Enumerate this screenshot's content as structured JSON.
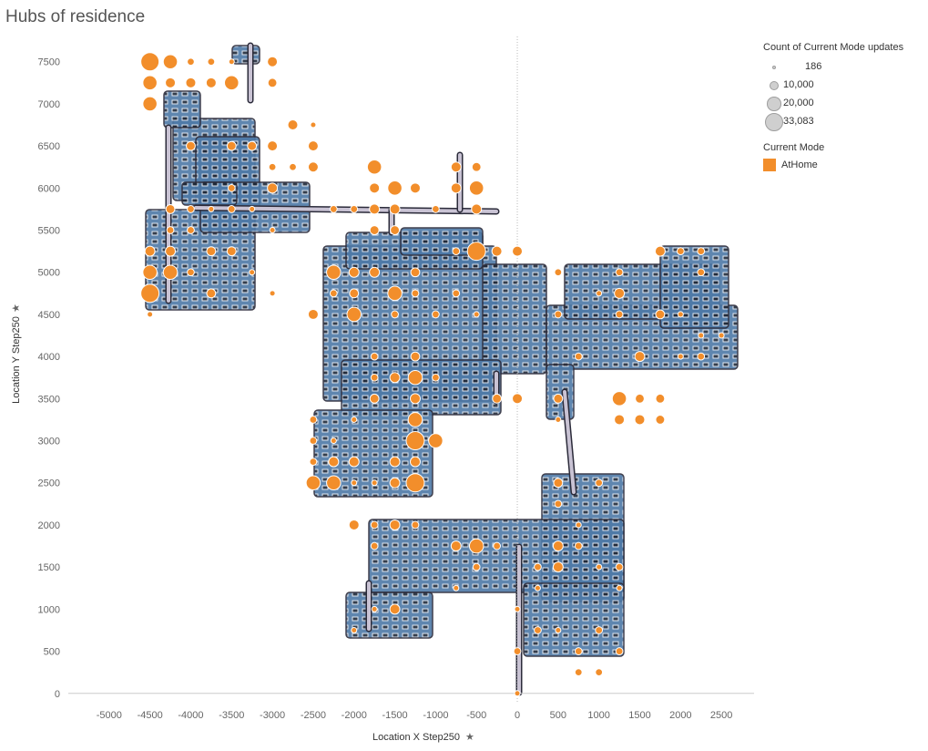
{
  "title": "Hubs of residence",
  "colors": {
    "marker": "#f28e2b",
    "network": "#4e79a7",
    "road": "#c9c3d4",
    "road_outline": "#2b2b3a"
  },
  "legend": {
    "size_title": "Count of Current Mode updates",
    "size_items": [
      {
        "label": "186",
        "value": 186
      },
      {
        "label": "10,000",
        "value": 10000
      },
      {
        "label": "20,000",
        "value": 20000
      },
      {
        "label": "33,083",
        "value": 33083
      }
    ],
    "color_title": "Current Mode",
    "color_items": [
      {
        "label": "AtHome"
      }
    ]
  },
  "chart_data": {
    "type": "scatter",
    "title": "Hubs of residence",
    "xlabel": "Location X Step250",
    "ylabel": "Location Y Step250",
    "xlim": [
      -5500,
      2900
    ],
    "ylim": [
      -100,
      7800
    ],
    "x_ticks": [
      -5000,
      -4500,
      -4000,
      -3500,
      -3000,
      -2500,
      -2000,
      -1500,
      -1000,
      -500,
      0,
      500,
      1000,
      1500,
      2000,
      2500
    ],
    "y_ticks": [
      0,
      500,
      1000,
      1500,
      2000,
      2500,
      3000,
      3500,
      4000,
      4500,
      5000,
      5500,
      6000,
      6500,
      7000,
      7500
    ],
    "series": [
      {
        "name": "AtHome",
        "points": [
          {
            "x": -4500,
            "y": 7500,
            "count": 33083
          },
          {
            "x": -4250,
            "y": 7500,
            "count": 20000
          },
          {
            "x": -4500,
            "y": 7250,
            "count": 20000
          },
          {
            "x": -4250,
            "y": 7250,
            "count": 10000
          },
          {
            "x": -4500,
            "y": 7000,
            "count": 20000
          },
          {
            "x": -4000,
            "y": 7250,
            "count": 10000
          },
          {
            "x": -3750,
            "y": 7250,
            "count": 10000
          },
          {
            "x": -3500,
            "y": 7250,
            "count": 20000
          },
          {
            "x": -3000,
            "y": 7250,
            "count": 8000
          },
          {
            "x": -3000,
            "y": 7500,
            "count": 10000
          },
          {
            "x": -4000,
            "y": 7500,
            "count": 5000
          },
          {
            "x": -3750,
            "y": 7500,
            "count": 5000
          },
          {
            "x": -3500,
            "y": 7500,
            "count": 3000
          },
          {
            "x": -4000,
            "y": 6500,
            "count": 8000
          },
          {
            "x": -3500,
            "y": 6500,
            "count": 8000
          },
          {
            "x": -3250,
            "y": 6500,
            "count": 8000
          },
          {
            "x": -3000,
            "y": 6500,
            "count": 10000
          },
          {
            "x": -2750,
            "y": 6750,
            "count": 10000
          },
          {
            "x": -2500,
            "y": 6500,
            "count": 10000
          },
          {
            "x": -2500,
            "y": 6250,
            "count": 10000
          },
          {
            "x": -2750,
            "y": 6250,
            "count": 5000
          },
          {
            "x": -3000,
            "y": 6250,
            "count": 5000
          },
          {
            "x": -2500,
            "y": 6750,
            "count": 3000
          },
          {
            "x": -3000,
            "y": 6000,
            "count": 10000
          },
          {
            "x": -3500,
            "y": 6000,
            "count": 5000
          },
          {
            "x": -4250,
            "y": 5750,
            "count": 8000
          },
          {
            "x": -4000,
            "y": 5750,
            "count": 5000
          },
          {
            "x": -3750,
            "y": 5750,
            "count": 3000
          },
          {
            "x": -3500,
            "y": 5750,
            "count": 5000
          },
          {
            "x": -3250,
            "y": 5750,
            "count": 3000
          },
          {
            "x": -4250,
            "y": 5500,
            "count": 5000
          },
          {
            "x": -4000,
            "y": 5500,
            "count": 5000
          },
          {
            "x": -3000,
            "y": 5500,
            "count": 3000
          },
          {
            "x": -4500,
            "y": 5250,
            "count": 10000
          },
          {
            "x": -4250,
            "y": 5250,
            "count": 10000
          },
          {
            "x": -3750,
            "y": 5250,
            "count": 8000
          },
          {
            "x": -3500,
            "y": 5250,
            "count": 8000
          },
          {
            "x": -4500,
            "y": 5000,
            "count": 20000
          },
          {
            "x": -4250,
            "y": 5000,
            "count": 20000
          },
          {
            "x": -4000,
            "y": 5000,
            "count": 5000
          },
          {
            "x": -3250,
            "y": 5000,
            "count": 3000
          },
          {
            "x": -4500,
            "y": 4750,
            "count": 33083
          },
          {
            "x": -3750,
            "y": 4750,
            "count": 8000
          },
          {
            "x": -3000,
            "y": 4750,
            "count": 3000
          },
          {
            "x": -4500,
            "y": 4500,
            "count": 3000
          },
          {
            "x": -1750,
            "y": 6250,
            "count": 20000
          },
          {
            "x": -1750,
            "y": 6000,
            "count": 10000
          },
          {
            "x": -1500,
            "y": 6000,
            "count": 20000
          },
          {
            "x": -1250,
            "y": 6000,
            "count": 10000
          },
          {
            "x": -750,
            "y": 6000,
            "count": 10000
          },
          {
            "x": -500,
            "y": 6000,
            "count": 20000
          },
          {
            "x": -750,
            "y": 6250,
            "count": 10000
          },
          {
            "x": -500,
            "y": 6250,
            "count": 8000
          },
          {
            "x": -1750,
            "y": 5750,
            "count": 10000
          },
          {
            "x": -1500,
            "y": 5750,
            "count": 10000
          },
          {
            "x": -1000,
            "y": 5750,
            "count": 5000
          },
          {
            "x": -500,
            "y": 5750,
            "count": 10000
          },
          {
            "x": -2250,
            "y": 5750,
            "count": 5000
          },
          {
            "x": -2000,
            "y": 5750,
            "count": 5000
          },
          {
            "x": -1750,
            "y": 5500,
            "count": 8000
          },
          {
            "x": -1500,
            "y": 5500,
            "count": 8000
          },
          {
            "x": -500,
            "y": 5250,
            "count": 33083
          },
          {
            "x": -250,
            "y": 5250,
            "count": 10000
          },
          {
            "x": 0,
            "y": 5250,
            "count": 10000
          },
          {
            "x": -750,
            "y": 5250,
            "count": 5000
          },
          {
            "x": -2250,
            "y": 5000,
            "count": 20000
          },
          {
            "x": -2000,
            "y": 5000,
            "count": 10000
          },
          {
            "x": -1750,
            "y": 5000,
            "count": 10000
          },
          {
            "x": -1250,
            "y": 5000,
            "count": 8000
          },
          {
            "x": -2000,
            "y": 4750,
            "count": 8000
          },
          {
            "x": -1500,
            "y": 4750,
            "count": 20000
          },
          {
            "x": -1250,
            "y": 4750,
            "count": 5000
          },
          {
            "x": -2250,
            "y": 4750,
            "count": 5000
          },
          {
            "x": -2500,
            "y": 4500,
            "count": 10000
          },
          {
            "x": -2000,
            "y": 4500,
            "count": 20000
          },
          {
            "x": -1500,
            "y": 4500,
            "count": 5000
          },
          {
            "x": -1000,
            "y": 4500,
            "count": 5000
          },
          {
            "x": -750,
            "y": 4750,
            "count": 5000
          },
          {
            "x": -500,
            "y": 4500,
            "count": 3000
          },
          {
            "x": -1250,
            "y": 4000,
            "count": 8000
          },
          {
            "x": -1750,
            "y": 4000,
            "count": 5000
          },
          {
            "x": -1500,
            "y": 3750,
            "count": 10000
          },
          {
            "x": -1250,
            "y": 3750,
            "count": 20000
          },
          {
            "x": -1000,
            "y": 3750,
            "count": 5000
          },
          {
            "x": -1750,
            "y": 3750,
            "count": 5000
          },
          {
            "x": -1750,
            "y": 3500,
            "count": 8000
          },
          {
            "x": -1250,
            "y": 3500,
            "count": 10000
          },
          {
            "x": -250,
            "y": 3500,
            "count": 8000
          },
          {
            "x": 0,
            "y": 3500,
            "count": 10000
          },
          {
            "x": -1250,
            "y": 3250,
            "count": 20000
          },
          {
            "x": -2500,
            "y": 3250,
            "count": 5000
          },
          {
            "x": -2000,
            "y": 3250,
            "count": 3000
          },
          {
            "x": -1250,
            "y": 3000,
            "count": 33083
          },
          {
            "x": -1000,
            "y": 3000,
            "count": 20000
          },
          {
            "x": -2500,
            "y": 3000,
            "count": 5000
          },
          {
            "x": -2250,
            "y": 3000,
            "count": 3000
          },
          {
            "x": -2250,
            "y": 2750,
            "count": 10000
          },
          {
            "x": -2000,
            "y": 2750,
            "count": 10000
          },
          {
            "x": -1500,
            "y": 2750,
            "count": 10000
          },
          {
            "x": -1250,
            "y": 2750,
            "count": 10000
          },
          {
            "x": -2500,
            "y": 2750,
            "count": 5000
          },
          {
            "x": -2500,
            "y": 2500,
            "count": 20000
          },
          {
            "x": -2250,
            "y": 2500,
            "count": 20000
          },
          {
            "x": -1500,
            "y": 2500,
            "count": 10000
          },
          {
            "x": -1250,
            "y": 2500,
            "count": 33083
          },
          {
            "x": -2000,
            "y": 2500,
            "count": 3000
          },
          {
            "x": -1750,
            "y": 2500,
            "count": 3000
          },
          {
            "x": -2000,
            "y": 2000,
            "count": 10000
          },
          {
            "x": -1750,
            "y": 2000,
            "count": 5000
          },
          {
            "x": -1500,
            "y": 2000,
            "count": 10000
          },
          {
            "x": -1250,
            "y": 2000,
            "count": 5000
          },
          {
            "x": -1750,
            "y": 1750,
            "count": 5000
          },
          {
            "x": -750,
            "y": 1750,
            "count": 10000
          },
          {
            "x": -500,
            "y": 1750,
            "count": 20000
          },
          {
            "x": -250,
            "y": 1750,
            "count": 5000
          },
          {
            "x": -500,
            "y": 1500,
            "count": 5000
          },
          {
            "x": -750,
            "y": 1250,
            "count": 3000
          },
          {
            "x": -1500,
            "y": 1000,
            "count": 10000
          },
          {
            "x": -1750,
            "y": 1000,
            "count": 3000
          },
          {
            "x": -2000,
            "y": 750,
            "count": 3000
          },
          {
            "x": 500,
            "y": 5000,
            "count": 5000
          },
          {
            "x": 1250,
            "y": 5000,
            "count": 5000
          },
          {
            "x": 1250,
            "y": 4750,
            "count": 10000
          },
          {
            "x": 1000,
            "y": 4750,
            "count": 3000
          },
          {
            "x": 500,
            "y": 4500,
            "count": 5000
          },
          {
            "x": 1250,
            "y": 4500,
            "count": 5000
          },
          {
            "x": 1750,
            "y": 4500,
            "count": 8000
          },
          {
            "x": 2000,
            "y": 4500,
            "count": 3000
          },
          {
            "x": 1750,
            "y": 5250,
            "count": 10000
          },
          {
            "x": 2000,
            "y": 5250,
            "count": 5000
          },
          {
            "x": 2250,
            "y": 5250,
            "count": 5000
          },
          {
            "x": 2250,
            "y": 5000,
            "count": 5000
          },
          {
            "x": 2250,
            "y": 4250,
            "count": 3000
          },
          {
            "x": 2500,
            "y": 4250,
            "count": 3000
          },
          {
            "x": 750,
            "y": 4000,
            "count": 5000
          },
          {
            "x": 1500,
            "y": 4000,
            "count": 10000
          },
          {
            "x": 2250,
            "y": 4000,
            "count": 5000
          },
          {
            "x": 2000,
            "y": 4000,
            "count": 3000
          },
          {
            "x": 500,
            "y": 3500,
            "count": 8000
          },
          {
            "x": 1250,
            "y": 3500,
            "count": 20000
          },
          {
            "x": 1500,
            "y": 3500,
            "count": 8000
          },
          {
            "x": 1750,
            "y": 3500,
            "count": 8000
          },
          {
            "x": 1250,
            "y": 3250,
            "count": 10000
          },
          {
            "x": 1500,
            "y": 3250,
            "count": 10000
          },
          {
            "x": 1750,
            "y": 3250,
            "count": 8000
          },
          {
            "x": 500,
            "y": 3250,
            "count": 3000
          },
          {
            "x": 500,
            "y": 2500,
            "count": 8000
          },
          {
            "x": 1000,
            "y": 2500,
            "count": 5000
          },
          {
            "x": 500,
            "y": 2250,
            "count": 5000
          },
          {
            "x": 750,
            "y": 2000,
            "count": 3000
          },
          {
            "x": 500,
            "y": 1750,
            "count": 10000
          },
          {
            "x": 750,
            "y": 1750,
            "count": 5000
          },
          {
            "x": 500,
            "y": 1500,
            "count": 10000
          },
          {
            "x": 250,
            "y": 1500,
            "count": 5000
          },
          {
            "x": 1250,
            "y": 1500,
            "count": 5000
          },
          {
            "x": 1000,
            "y": 1500,
            "count": 3000
          },
          {
            "x": 250,
            "y": 1250,
            "count": 3000
          },
          {
            "x": 1250,
            "y": 1250,
            "count": 3000
          },
          {
            "x": 0,
            "y": 1000,
            "count": 3000
          },
          {
            "x": 250,
            "y": 750,
            "count": 5000
          },
          {
            "x": 500,
            "y": 750,
            "count": 3000
          },
          {
            "x": 1000,
            "y": 750,
            "count": 5000
          },
          {
            "x": 0,
            "y": 500,
            "count": 5000
          },
          {
            "x": 750,
            "y": 500,
            "count": 5000
          },
          {
            "x": 1250,
            "y": 500,
            "count": 5000
          },
          {
            "x": 750,
            "y": 250,
            "count": 5000
          },
          {
            "x": 1000,
            "y": 250,
            "count": 5000
          },
          {
            "x": 0,
            "y": 0,
            "count": 3000
          }
        ]
      }
    ]
  }
}
